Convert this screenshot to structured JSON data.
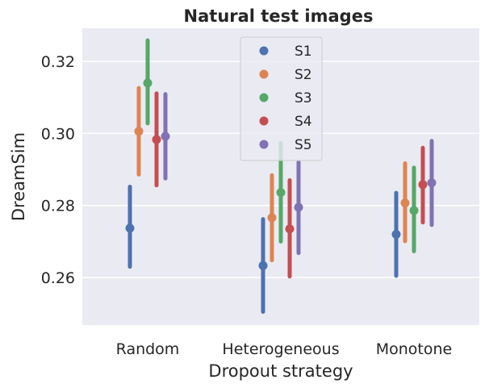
{
  "chart_data": {
    "type": "pointplot",
    "title": "Natural test images",
    "xlabel": "Dropout strategy",
    "ylabel": "DreamSim",
    "categories": [
      "Random",
      "Heterogeneous",
      "Monotone"
    ],
    "ylim": [
      0.2468,
      0.3292
    ],
    "yticks": [
      0.26,
      0.28,
      0.3,
      0.32
    ],
    "ytick_labels": [
      "0.26",
      "0.28",
      "0.30",
      "0.32"
    ],
    "grid": true,
    "legend_position": "upper-center",
    "series": [
      {
        "name": "S1",
        "color": "#4c72b0",
        "values": [
          0.2737,
          0.2633,
          0.272
        ],
        "lower": [
          0.263,
          0.2505,
          0.2605
        ],
        "upper": [
          0.2852,
          0.2762,
          0.2835
        ]
      },
      {
        "name": "S2",
        "color": "#dd8452",
        "values": [
          0.3006,
          0.2766,
          0.2807
        ],
        "lower": [
          0.2886,
          0.2648,
          0.2701
        ],
        "upper": [
          0.3126,
          0.2884,
          0.2917
        ]
      },
      {
        "name": "S3",
        "color": "#55a868",
        "values": [
          0.314,
          0.2836,
          0.2786
        ],
        "lower": [
          0.3028,
          0.27,
          0.2673
        ],
        "upper": [
          0.3258,
          0.2973,
          0.2905
        ]
      },
      {
        "name": "S4",
        "color": "#c44e52",
        "values": [
          0.2983,
          0.2735,
          0.2858
        ],
        "lower": [
          0.2856,
          0.2603,
          0.2753
        ],
        "upper": [
          0.3111,
          0.287,
          0.296
        ]
      },
      {
        "name": "S5",
        "color": "#8172b3",
        "values": [
          0.2992,
          0.2795,
          0.2863
        ],
        "lower": [
          0.2875,
          0.2668,
          0.2746
        ],
        "upper": [
          0.3109,
          0.292,
          0.2979
        ]
      }
    ]
  }
}
